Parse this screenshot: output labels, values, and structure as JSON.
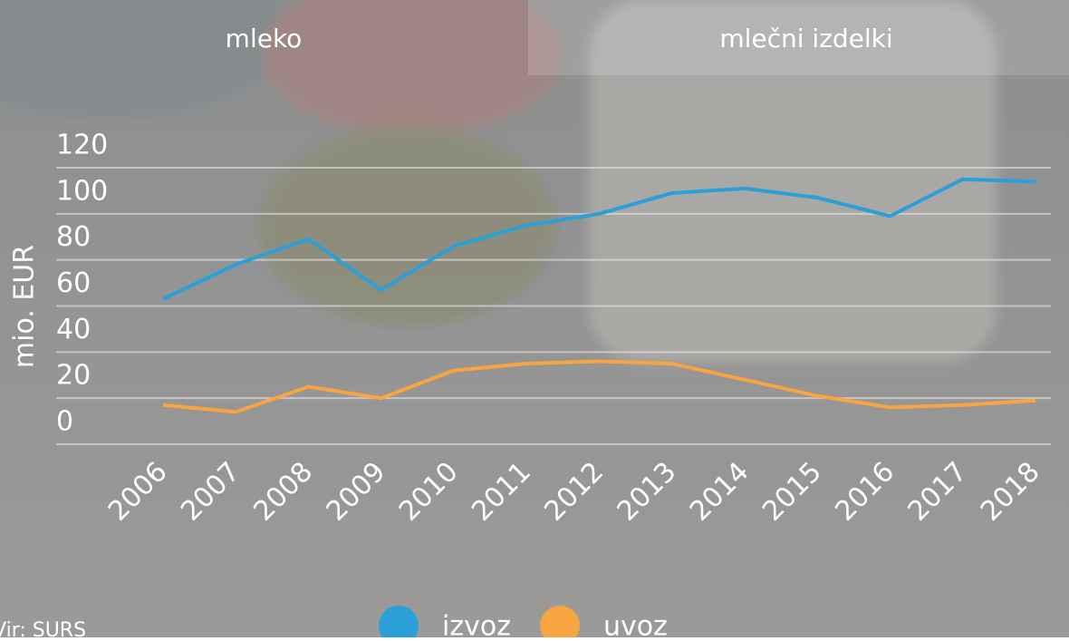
{
  "tabs": [
    "mleko",
    "mlečni izdelki"
  ],
  "chart_data": {
    "type": "line",
    "ylabel": "mio. EUR",
    "categories": [
      "2006",
      "2007",
      "2008",
      "2009",
      "2010",
      "2011",
      "2012",
      "2013",
      "2014",
      "2015",
      "2016",
      "2017",
      "2018"
    ],
    "series": [
      {
        "name": "izvoz",
        "color": "#2a9fd8",
        "values": [
          63,
          78,
          89,
          67,
          86,
          95,
          100,
          109,
          111,
          107,
          99,
          115,
          114
        ]
      },
      {
        "name": "uvoz",
        "color": "#f7a541",
        "values": [
          17,
          14,
          25,
          20,
          32,
          35,
          36,
          35,
          28,
          21,
          16,
          17,
          19
        ]
      }
    ],
    "ylim": [
      0,
      120
    ],
    "yticks": [
      0,
      20,
      40,
      60,
      80,
      100,
      120
    ],
    "grid": true,
    "source": "Vir: SURS"
  }
}
